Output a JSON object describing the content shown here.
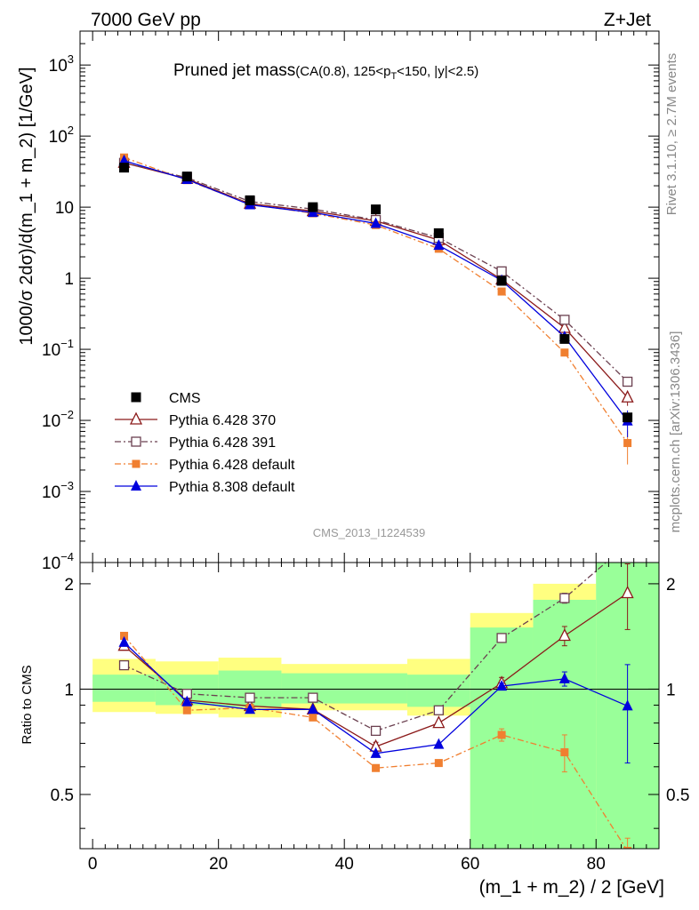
{
  "header": {
    "left": "7000 GeV pp",
    "right": "Z+Jet"
  },
  "side_labels": {
    "rivet": "Rivet 3.1.10, ≥ 2.7M events",
    "mcplots": "mcplots.cern.ch [arXiv:1306.3436]"
  },
  "chart_data": {
    "type": "line",
    "title_main": "Pruned jet mass",
    "title_detail": "(CA(0.8), 125<p_T<150, |y|<2.5)",
    "watermark": "CMS_2013_I1224539",
    "xlabel": "(m_1 + m_2) / 2 [GeV]",
    "ylabel": "1000/σ 2dσ)/d(m_1 + m_2) [1/GeV]",
    "ratio_ylabel": "Ratio to CMS",
    "xlim": [
      -2,
      90
    ],
    "ylim": [
      0.0001,
      3000
    ],
    "yscale": "log",
    "ratio_ylim": [
      0.35,
      2.3
    ],
    "ratio_yscale": "log",
    "x_ticks": [
      0,
      20,
      40,
      60,
      80
    ],
    "main_ytick_labels": [
      {
        "v": 1000,
        "text": "10",
        "sup": "3"
      },
      {
        "v": 100,
        "text": "10",
        "sup": "2"
      },
      {
        "v": 10,
        "text": "10",
        "sup": ""
      },
      {
        "v": 1,
        "text": "1",
        "sup": ""
      },
      {
        "v": 0.1,
        "text": "10",
        "sup": "−1"
      },
      {
        "v": 0.01,
        "text": "10",
        "sup": "−2"
      },
      {
        "v": 0.001,
        "text": "10",
        "sup": "−3"
      },
      {
        "v": 0.0001,
        "text": "10",
        "sup": "−4"
      }
    ],
    "ratio_ytick_labels": [
      {
        "v": 2,
        "text": "2"
      },
      {
        "v": 1,
        "text": "1"
      },
      {
        "v": 0.5,
        "text": "0.5"
      }
    ],
    "legend_position": "lower-left",
    "x": [
      5,
      15,
      25,
      35,
      45,
      55,
      65,
      75,
      85
    ],
    "data": {
      "name": "CMS",
      "values": [
        36,
        27,
        12.5,
        10,
        9.3,
        4.3,
        0.92,
        0.14,
        0.011
      ],
      "band_yellow": [
        [
          0,
          10,
          0.86,
          1.22
        ],
        [
          10,
          20,
          0.85,
          1.2
        ],
        [
          20,
          30,
          0.83,
          1.23
        ],
        [
          30,
          50,
          0.87,
          1.18
        ],
        [
          50,
          60,
          0.84,
          1.22
        ],
        [
          60,
          70,
          0.3,
          1.65
        ],
        [
          70,
          80,
          0.3,
          2.0
        ],
        [
          80,
          90,
          0.3,
          3.0
        ]
      ],
      "band_green": [
        [
          0,
          10,
          0.92,
          1.1
        ],
        [
          10,
          20,
          0.9,
          1.1
        ],
        [
          20,
          30,
          0.89,
          1.13
        ],
        [
          30,
          50,
          0.91,
          1.11
        ],
        [
          50,
          60,
          0.89,
          1.1
        ],
        [
          60,
          70,
          0.3,
          1.5
        ],
        [
          70,
          80,
          0.3,
          1.8
        ],
        [
          80,
          90,
          0.3,
          3.0
        ]
      ]
    },
    "series": [
      {
        "name": "Pythia 6.428 370",
        "color": "#8b1a1a",
        "dash": "",
        "marker": "triangle-open",
        "values": [
          42,
          25,
          11.2,
          8.8,
          6.4,
          3.45,
          0.96,
          0.2,
          0.021
        ],
        "ratio": [
          1.33,
          0.93,
          0.895,
          0.875,
          0.685,
          0.8,
          1.04,
          1.42,
          1.88
        ],
        "ratio_err": [
          0,
          0,
          0,
          0,
          0.02,
          0,
          0.04,
          0.09,
          0.4
        ],
        "main_err": [
          0,
          0,
          0,
          0,
          0,
          0,
          0,
          0.03,
          0.005
        ]
      },
      {
        "name": "Pythia 6.428 391",
        "color": "#6b4050",
        "dash": "7,3,2,3",
        "marker": "square-open",
        "values": [
          42,
          26,
          12,
          9.4,
          6.6,
          3.7,
          1.25,
          0.26,
          0.035
        ],
        "ratio": [
          1.17,
          0.97,
          0.945,
          0.945,
          0.76,
          0.87,
          1.4,
          1.82,
          2.6
        ],
        "ratio_err": [
          0,
          0,
          0,
          0,
          0,
          0,
          0,
          0.06,
          0
        ],
        "main_err": [
          0,
          0,
          0,
          0,
          0,
          0,
          0,
          0,
          0
        ]
      },
      {
        "name": "Pythia 6.428 default",
        "color": "#f07f30",
        "dash": "7,3,2,3",
        "marker": "square-filled",
        "values": [
          50,
          24,
          11,
          8.2,
          5.6,
          2.6,
          0.65,
          0.09,
          0.0048
        ],
        "ratio": [
          1.42,
          0.87,
          0.885,
          0.83,
          0.595,
          0.615,
          0.74,
          0.66,
          0.345
        ],
        "ratio_err": [
          0,
          0,
          0,
          0,
          0,
          0,
          0.03,
          0.08,
          0.03
        ],
        "main_err": [
          0,
          0,
          0,
          0,
          0,
          0,
          0,
          0,
          0.0024
        ]
      },
      {
        "name": "Pythia 8.308 default",
        "color": "#0000dd",
        "dash": "",
        "marker": "triangle-filled",
        "values": [
          45,
          24.5,
          10.8,
          8.4,
          5.9,
          2.9,
          0.93,
          0.15,
          0.0098
        ],
        "ratio": [
          1.36,
          0.92,
          0.875,
          0.875,
          0.655,
          0.695,
          1.02,
          1.07,
          0.895
        ],
        "ratio_err": [
          0,
          0,
          0,
          0,
          0,
          0,
          0.02,
          0.05,
          0.28
        ],
        "main_err": [
          0,
          0,
          0,
          0,
          0,
          0,
          0,
          0,
          0.004
        ]
      }
    ]
  }
}
